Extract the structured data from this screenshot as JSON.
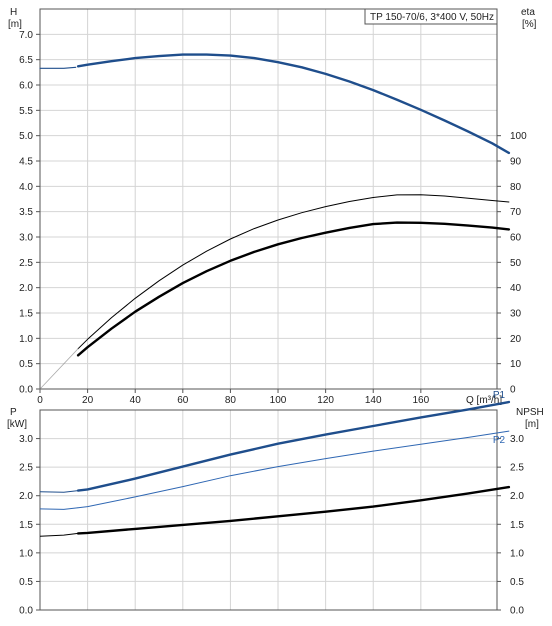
{
  "chart_data": [
    {
      "type": "line",
      "panel": "head-efficiency",
      "title": "TP 150-70/6, 3*400 V, 50Hz",
      "xlabel": "Q [m³/h]",
      "ylabel_left": "H\n[m]",
      "ylabel_right": "eta\n[%]",
      "x_ticks": [
        0,
        20,
        40,
        60,
        80,
        100,
        120,
        140,
        160
      ],
      "y_left_ticks": [
        "0.0",
        "0.5",
        "1.0",
        "1.5",
        "2.0",
        "2.5",
        "3.0",
        "3.5",
        "4.0",
        "4.5",
        "5.0",
        "5.5",
        "6.0",
        "6.5",
        "7.0"
      ],
      "y_right_ticks": [
        "0",
        "10",
        "20",
        "30",
        "40",
        "50",
        "60",
        "70",
        "80",
        "90",
        "100"
      ],
      "xlim": [
        0,
        192
      ],
      "ylim_left": [
        0,
        7.5
      ],
      "ylim_right": [
        0,
        100
      ],
      "right_axis_top_value_at_left": 5.0,
      "grid": true,
      "series": [
        {
          "name": "",
          "axis": "left",
          "color": "#1f4e8c",
          "style": "solid",
          "x": [
            0,
            5,
            10,
            15
          ],
          "y": [
            6.33,
            6.33,
            6.33,
            6.35
          ]
        },
        {
          "name": "",
          "axis": "left",
          "color": "#1f4e8c",
          "style": "thick",
          "x": [
            16,
            20,
            30,
            40,
            50,
            60,
            70,
            80,
            90,
            100,
            110,
            120,
            130,
            140,
            150,
            160,
            170,
            180,
            190,
            197
          ],
          "y": [
            6.37,
            6.4,
            6.47,
            6.53,
            6.57,
            6.6,
            6.6,
            6.58,
            6.53,
            6.45,
            6.35,
            6.22,
            6.07,
            5.9,
            5.71,
            5.51,
            5.3,
            5.08,
            4.85,
            4.66
          ]
        },
        {
          "name": "",
          "axis": "right",
          "color": "#000000",
          "style": "thin",
          "x": [
            16,
            20,
            30,
            40,
            50,
            60,
            70,
            80,
            90,
            100,
            110,
            120,
            130,
            140,
            150,
            160,
            170,
            180,
            190,
            197
          ],
          "y": [
            15.9,
            19.6,
            28.1,
            35.8,
            42.7,
            48.9,
            54.4,
            59.2,
            63.3,
            66.7,
            69.6,
            72.0,
            74.0,
            75.6,
            76.6,
            76.7,
            76.2,
            75.3,
            74.4,
            73.8
          ]
        },
        {
          "name": "",
          "axis": "right",
          "color": "#000000",
          "style": "thick",
          "x": [
            16,
            20,
            30,
            40,
            50,
            60,
            70,
            80,
            90,
            100,
            110,
            120,
            130,
            140,
            150,
            160,
            170,
            180,
            190,
            197
          ],
          "y": [
            13.3,
            16.5,
            23.8,
            30.5,
            36.4,
            41.8,
            46.5,
            50.6,
            54.1,
            57.1,
            59.6,
            61.7,
            63.6,
            65.1,
            65.7,
            65.6,
            65.2,
            64.5,
            63.7,
            63.0
          ]
        },
        {
          "name": "",
          "axis": "right",
          "color": "#888888",
          "style": "faint",
          "x": [
            0,
            16
          ],
          "y": [
            0,
            15.9
          ]
        }
      ]
    },
    {
      "type": "line",
      "panel": "power-npsh",
      "title": "",
      "xlabel": "",
      "ylabel_left": "P\n[kW]",
      "ylabel_right": "NPSH\n[m]",
      "y_left_ticks": [
        "0.0",
        "0.5",
        "1.0",
        "1.5",
        "2.0",
        "2.5",
        "3.0"
      ],
      "y_right_ticks": [
        "0.0",
        "0.5",
        "1.0",
        "1.5",
        "2.0",
        "2.5",
        "3.0"
      ],
      "xlim": [
        0,
        192
      ],
      "ylim": [
        0,
        3.5
      ],
      "grid": true,
      "series": [
        {
          "name": "P1",
          "axis": "left",
          "color": "#1f4e8c",
          "style": "thick",
          "label_color": "#1f4e8c",
          "x": [
            0,
            10,
            16,
            20,
            40,
            60,
            80,
            100,
            120,
            140,
            160,
            180,
            197
          ],
          "y": [
            2.07,
            2.06,
            2.09,
            2.11,
            2.3,
            2.51,
            2.72,
            2.91,
            3.07,
            3.22,
            3.37,
            3.51,
            3.64
          ]
        },
        {
          "name": "P2",
          "axis": "left",
          "color": "#2f67b3",
          "style": "thin",
          "label_color": "#2f67b3",
          "x": [
            0,
            10,
            16,
            20,
            40,
            60,
            80,
            100,
            120,
            140,
            160,
            180,
            197
          ],
          "y": [
            1.77,
            1.76,
            1.79,
            1.81,
            1.98,
            2.16,
            2.35,
            2.51,
            2.65,
            2.78,
            2.9,
            3.02,
            3.13
          ]
        },
        {
          "name": "",
          "axis": "right",
          "color": "#000000",
          "style": "thick",
          "x": [
            0,
            10,
            16,
            20,
            40,
            60,
            80,
            100,
            120,
            140,
            160,
            180,
            197
          ],
          "y": [
            1.29,
            1.31,
            1.34,
            1.35,
            1.42,
            1.49,
            1.56,
            1.64,
            1.72,
            1.81,
            1.92,
            2.04,
            2.15
          ]
        }
      ]
    }
  ]
}
